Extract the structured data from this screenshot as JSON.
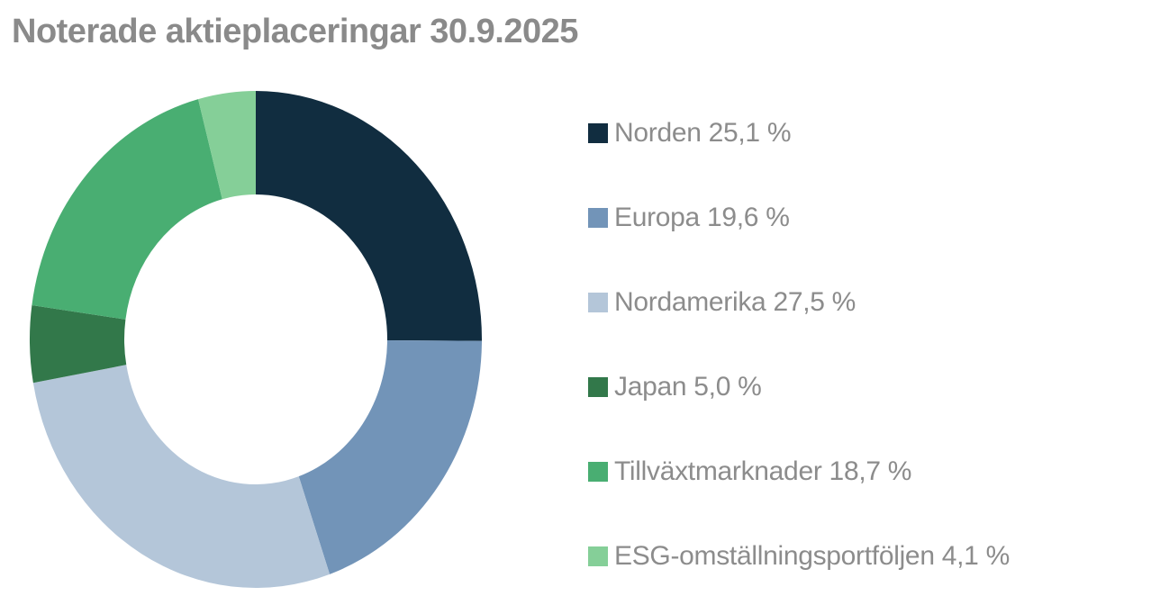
{
  "title": "Noterade aktieplaceringar 30.9.2025",
  "chart_data": {
    "type": "pie",
    "subtype": "donut",
    "title": "Noterade aktieplaceringar 30.9.2025",
    "categories": [
      "Norden",
      "Europa",
      "Nordamerika",
      "Japan",
      "Tillväxtmarknader",
      "ESG-omställningsportföljen"
    ],
    "values": [
      25.1,
      19.6,
      27.5,
      5.0,
      18.7,
      4.1
    ],
    "unit": "%",
    "colors": [
      "#112d40",
      "#7294b8",
      "#b4c6d9",
      "#32784a",
      "#49ae72",
      "#85cf98"
    ],
    "start_angle_deg": 0,
    "direction": "clockwise",
    "legend_position": "right",
    "text_color": "#8c8c8c",
    "title_color": "#8a8a8a"
  },
  "legend": {
    "items": [
      {
        "label": "Norden",
        "value_text": "25,1 %",
        "text": "Norden 25,1 %"
      },
      {
        "label": "Europa",
        "value_text": "19,6 %",
        "text": "Europa 19,6 %"
      },
      {
        "label": "Nordamerika",
        "value_text": "27,5 %",
        "text": "Nordamerika 27,5 %"
      },
      {
        "label": "Japan",
        "value_text": "5,0 %",
        "text": "Japan 5,0 %"
      },
      {
        "label": "Tillväxtmarknader",
        "value_text": "18,7 %",
        "text": "Tillväxtmarknader 18,7 %"
      },
      {
        "label": "ESG-omställningsportföljen",
        "value_text": "4,1 %",
        "text": "ESG-omställningsportföljen 4,1 %"
      }
    ]
  }
}
